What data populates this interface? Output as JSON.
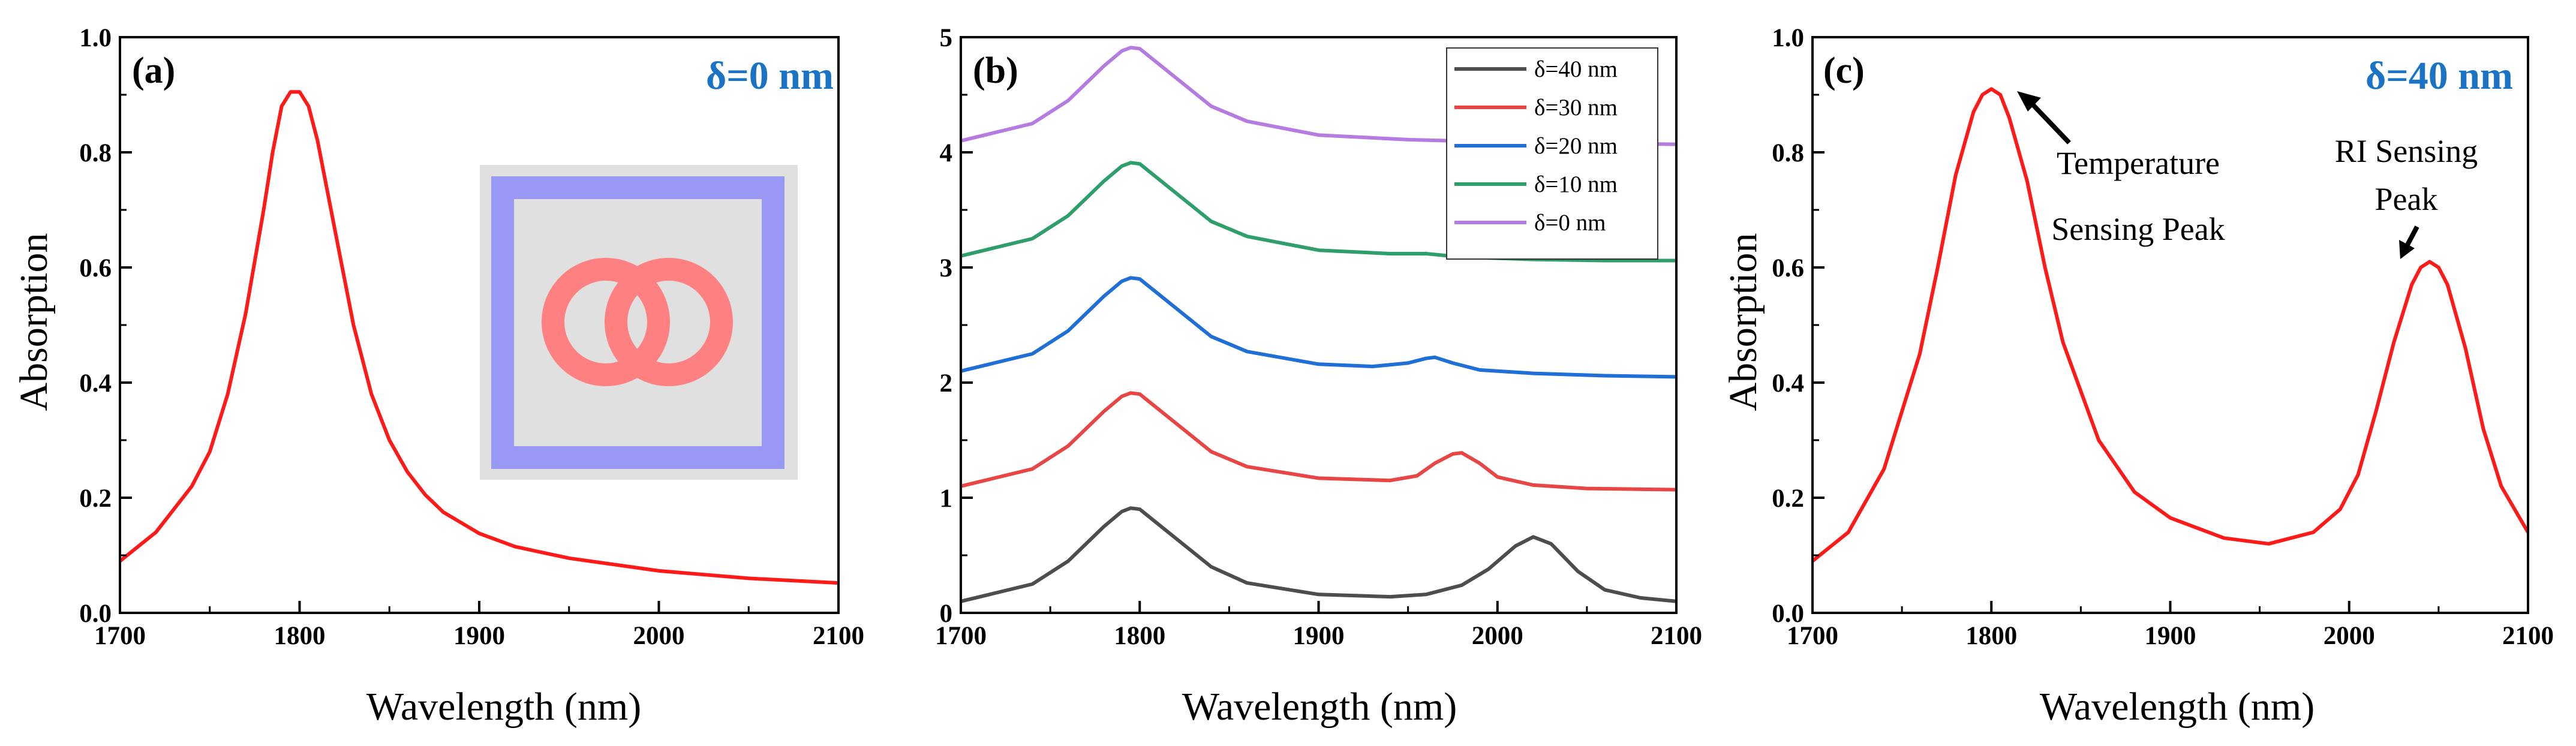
{
  "chart_data": [
    {
      "panel": "(a)",
      "type": "line",
      "annotation": "δ=0 nm",
      "xlabel": "Wavelength (nm)",
      "ylabel": "Absorption",
      "xlim": [
        1700,
        2100
      ],
      "ylim": [
        0,
        1.0
      ],
      "xticks": [
        "1700",
        "1800",
        "1900",
        "2000",
        "2100"
      ],
      "yticks": [
        "0.0",
        "0.2",
        "0.4",
        "0.6",
        "0.8",
        "1.0"
      ],
      "inset": "unit cell schematic: square ring with double-ring (peanut) resonator",
      "series": [
        {
          "name": "δ=0 nm",
          "color": "#ff1a1a",
          "x": [
            1700,
            1720,
            1740,
            1750,
            1760,
            1770,
            1780,
            1785,
            1790,
            1795,
            1800,
            1805,
            1810,
            1820,
            1830,
            1840,
            1850,
            1860,
            1870,
            1880,
            1900,
            1920,
            1950,
            2000,
            2050,
            2100
          ],
          "y": [
            0.09,
            0.14,
            0.22,
            0.28,
            0.38,
            0.52,
            0.7,
            0.8,
            0.88,
            0.905,
            0.905,
            0.88,
            0.82,
            0.66,
            0.5,
            0.38,
            0.3,
            0.245,
            0.205,
            0.175,
            0.138,
            0.115,
            0.095,
            0.073,
            0.06,
            0.052
          ]
        }
      ]
    },
    {
      "panel": "(b)",
      "type": "line",
      "xlabel": "Wavelength (nm)",
      "ylabel": "",
      "xlim": [
        1700,
        2100
      ],
      "ylim": [
        0,
        5
      ],
      "xticks": [
        "1700",
        "1800",
        "1900",
        "2000",
        "2100"
      ],
      "yticks": [
        "0",
        "1",
        "2",
        "3",
        "4",
        "5"
      ],
      "legend": "top-right",
      "series": [
        {
          "name": "δ=40 nm",
          "color": "#4d4d4d",
          "x": [
            1700,
            1740,
            1760,
            1780,
            1790,
            1795,
            1800,
            1820,
            1840,
            1860,
            1900,
            1940,
            1960,
            1980,
            1995,
            2010,
            2020,
            2030,
            2045,
            2060,
            2080,
            2100
          ],
          "y": [
            0.1,
            0.25,
            0.45,
            0.75,
            0.88,
            0.91,
            0.9,
            0.65,
            0.4,
            0.26,
            0.16,
            0.14,
            0.16,
            0.24,
            0.38,
            0.58,
            0.66,
            0.6,
            0.36,
            0.2,
            0.13,
            0.1
          ]
        },
        {
          "name": "δ=30 nm",
          "color": "#e84545",
          "x": [
            1700,
            1740,
            1760,
            1780,
            1790,
            1795,
            1800,
            1820,
            1840,
            1860,
            1900,
            1940,
            1955,
            1965,
            1975,
            1980,
            1990,
            2000,
            2020,
            2050,
            2100
          ],
          "y": [
            1.1,
            1.25,
            1.45,
            1.75,
            1.88,
            1.91,
            1.9,
            1.65,
            1.4,
            1.27,
            1.17,
            1.15,
            1.19,
            1.3,
            1.38,
            1.39,
            1.3,
            1.18,
            1.11,
            1.08,
            1.07
          ]
        },
        {
          "name": "δ=20 nm",
          "color": "#1f6fd6",
          "x": [
            1700,
            1740,
            1760,
            1780,
            1790,
            1795,
            1800,
            1820,
            1840,
            1860,
            1900,
            1930,
            1950,
            1960,
            1965,
            1975,
            1990,
            2020,
            2060,
            2100
          ],
          "y": [
            2.1,
            2.25,
            2.45,
            2.75,
            2.88,
            2.91,
            2.9,
            2.65,
            2.4,
            2.27,
            2.16,
            2.14,
            2.17,
            2.21,
            2.22,
            2.17,
            2.11,
            2.08,
            2.06,
            2.05
          ]
        },
        {
          "name": "δ=10 nm",
          "color": "#2e9e6b",
          "x": [
            1700,
            1740,
            1760,
            1780,
            1790,
            1795,
            1800,
            1820,
            1840,
            1860,
            1900,
            1940,
            1960,
            1980,
            2020,
            2060,
            2100
          ],
          "y": [
            3.1,
            3.25,
            3.45,
            3.75,
            3.88,
            3.91,
            3.9,
            3.65,
            3.4,
            3.27,
            3.15,
            3.12,
            3.12,
            3.09,
            3.07,
            3.06,
            3.06
          ]
        },
        {
          "name": "δ=0 nm",
          "color": "#b57be0",
          "x": [
            1700,
            1740,
            1760,
            1780,
            1790,
            1795,
            1800,
            1820,
            1840,
            1860,
            1900,
            1950,
            2000,
            2050,
            2100
          ],
          "y": [
            4.1,
            4.25,
            4.45,
            4.75,
            4.88,
            4.91,
            4.9,
            4.65,
            4.4,
            4.27,
            4.15,
            4.11,
            4.09,
            4.08,
            4.07
          ]
        }
      ]
    },
    {
      "panel": "(c)",
      "type": "line",
      "annotation": "δ=40 nm",
      "xlabel": "Wavelength (nm)",
      "ylabel": "Absorption",
      "xlim": [
        1700,
        2100
      ],
      "ylim": [
        0,
        1.0
      ],
      "xticks": [
        "1700",
        "1800",
        "1900",
        "2000",
        "2100"
      ],
      "yticks": [
        "0.0",
        "0.2",
        "0.4",
        "0.6",
        "0.8",
        "1.0"
      ],
      "arrow_annotations": [
        {
          "lines": [
            "Temperature",
            "Sensing Peak"
          ],
          "target": [
            1800,
            0.91
          ]
        },
        {
          "lines": [
            "RI Sensing",
            "Peak"
          ],
          "target": [
            2045,
            0.61
          ]
        }
      ],
      "series": [
        {
          "name": "δ=40 nm",
          "color": "#ff1a1a",
          "x": [
            1700,
            1720,
            1740,
            1760,
            1770,
            1780,
            1790,
            1795,
            1800,
            1805,
            1810,
            1820,
            1830,
            1840,
            1860,
            1880,
            1900,
            1930,
            1955,
            1980,
            1995,
            2005,
            2015,
            2025,
            2035,
            2040,
            2045,
            2050,
            2055,
            2065,
            2075,
            2085,
            2100
          ],
          "y": [
            0.09,
            0.14,
            0.25,
            0.45,
            0.6,
            0.76,
            0.87,
            0.9,
            0.91,
            0.9,
            0.86,
            0.75,
            0.6,
            0.47,
            0.3,
            0.21,
            0.165,
            0.13,
            0.12,
            0.14,
            0.18,
            0.24,
            0.35,
            0.47,
            0.57,
            0.6,
            0.61,
            0.6,
            0.57,
            0.46,
            0.32,
            0.22,
            0.14
          ]
        }
      ]
    }
  ]
}
